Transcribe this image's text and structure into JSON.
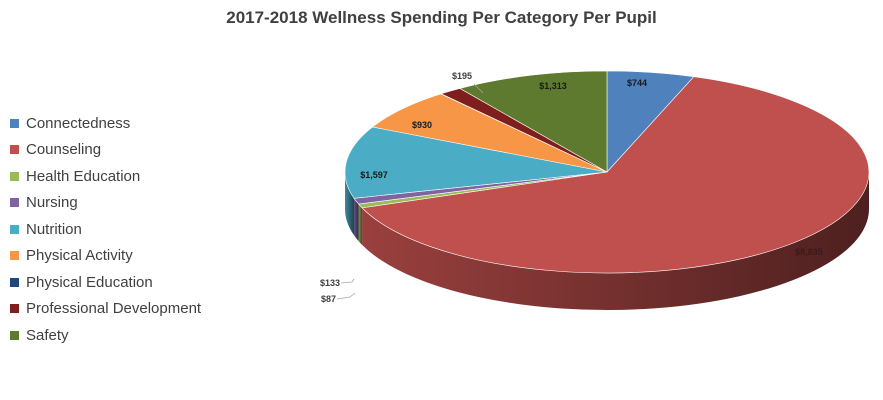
{
  "chart_data": {
    "type": "pie",
    "title": "2017-2018 Wellness Spending Per Category Per Pupil",
    "legend_position": "left",
    "categories": [
      "Connectedness",
      "Counseling",
      "Health Education",
      "Nursing",
      "Nutrition",
      "Physical Activity",
      "Physical Education",
      "Professional Development",
      "Safety"
    ],
    "values": [
      744,
      8835,
      87,
      133,
      1597,
      930,
      4,
      195,
      1313
    ],
    "data_labels": [
      "$744",
      "$8,835",
      "$87",
      "$133",
      "$1,597",
      "$930",
      "",
      "$195",
      "$1,313"
    ],
    "colors": [
      "#4F81BD",
      "#C0504D",
      "#9BBB59",
      "#8064A2",
      "#4BACC6",
      "#F79646",
      "#1F497D",
      "#7F1F1D",
      "#5E7A2E"
    ]
  }
}
